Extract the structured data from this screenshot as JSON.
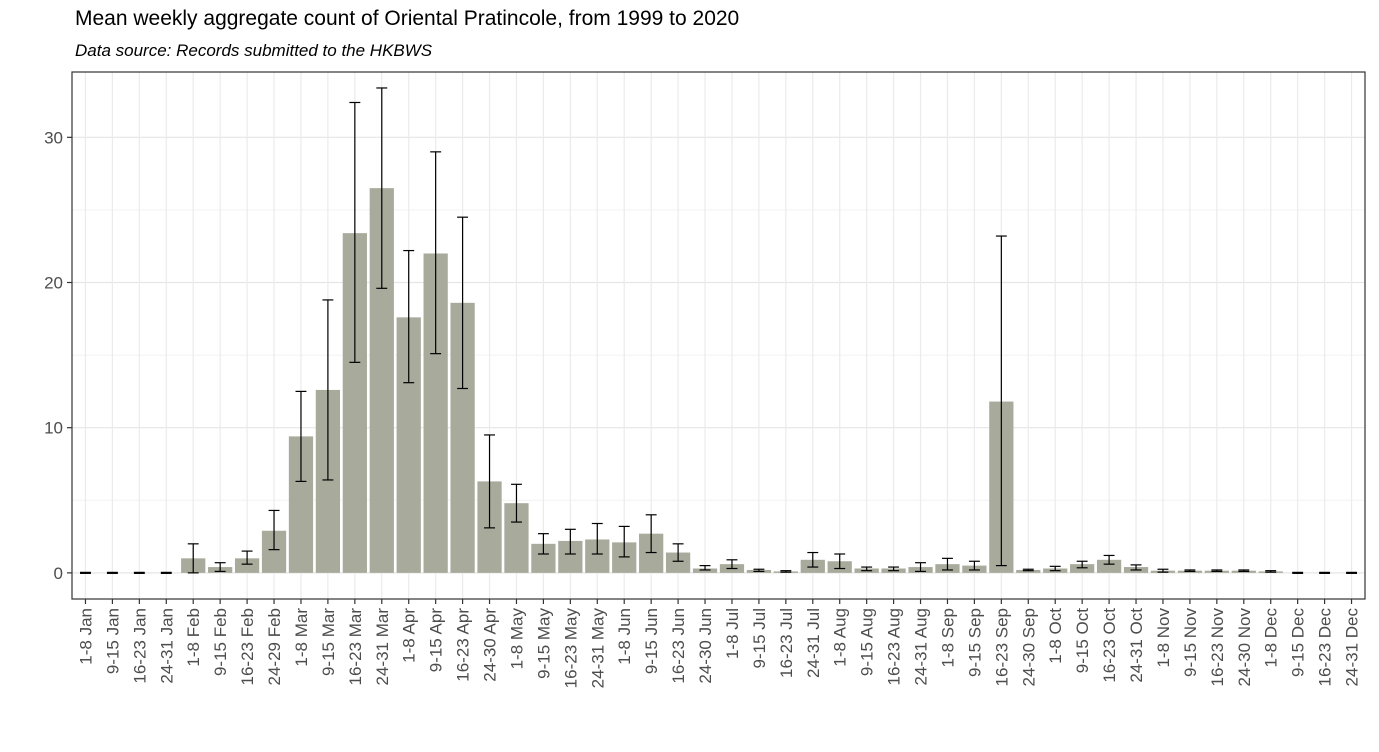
{
  "chart_data": {
    "type": "bar",
    "title": "Mean weekly aggregate count of Oriental Pratincole, from 1999 to 2020",
    "subtitle": "Data source: Records submitted to the HKBWS",
    "xlabel": "",
    "ylabel": "",
    "ylim": [
      -1.8,
      34.5
    ],
    "yticks": [
      0,
      10,
      20,
      30
    ],
    "grid": true,
    "bar_color": "#a8aa9c",
    "error_bar_color": "#000000",
    "categories": [
      "1-8 Jan",
      "9-15 Jan",
      "16-23 Jan",
      "24-31 Jan",
      "1-8 Feb",
      "9-15 Feb",
      "16-23 Feb",
      "24-29 Feb",
      "1-8 Mar",
      "9-15 Mar",
      "16-23 Mar",
      "24-31 Mar",
      "1-8 Apr",
      "9-15 Apr",
      "16-23 Apr",
      "24-30 Apr",
      "1-8 May",
      "9-15 May",
      "16-23 May",
      "24-31 May",
      "1-8 Jun",
      "9-15 Jun",
      "16-23 Jun",
      "24-30 Jun",
      "1-8 Jul",
      "9-15 Jul",
      "16-23 Jul",
      "24-31 Jul",
      "1-8 Aug",
      "9-15 Aug",
      "16-23 Aug",
      "24-31 Aug",
      "1-8 Sep",
      "9-15 Sep",
      "16-23 Sep",
      "24-30 Sep",
      "1-8 Oct",
      "9-15 Oct",
      "16-23 Oct",
      "24-31 Oct",
      "1-8 Nov",
      "9-15 Nov",
      "16-23 Nov",
      "24-30 Nov",
      "1-8 Dec",
      "9-15 Dec",
      "16-23 Dec",
      "24-31 Dec"
    ],
    "values": [
      0,
      0,
      0,
      0,
      1.0,
      0.4,
      1.0,
      2.9,
      9.4,
      12.6,
      23.4,
      26.5,
      17.6,
      22.0,
      18.6,
      6.3,
      4.8,
      2.0,
      2.2,
      2.3,
      2.1,
      2.7,
      1.4,
      0.3,
      0.6,
      0.2,
      0.1,
      0.9,
      0.8,
      0.3,
      0.3,
      0.4,
      0.6,
      0.5,
      11.8,
      0.2,
      0.3,
      0.6,
      0.9,
      0.4,
      0.15,
      0.15,
      0.15,
      0.15,
      0.1,
      0,
      0,
      0
    ],
    "error_low": [
      0,
      0,
      0,
      0,
      0.0,
      0.1,
      0.6,
      1.6,
      6.3,
      6.4,
      14.5,
      19.6,
      13.1,
      15.1,
      12.7,
      3.1,
      3.5,
      1.3,
      1.3,
      1.3,
      1.1,
      1.4,
      0.8,
      0.2,
      0.3,
      0.1,
      0.05,
      0.4,
      0.3,
      0.15,
      0.15,
      0.1,
      0.2,
      0.2,
      0.5,
      0.15,
      0.15,
      0.35,
      0.6,
      0.2,
      0.05,
      0.1,
      0.1,
      0.1,
      0.05,
      0,
      0,
      0
    ],
    "error_high": [
      0,
      0,
      0,
      0,
      2.0,
      0.7,
      1.5,
      4.3,
      12.5,
      18.8,
      32.4,
      33.4,
      22.2,
      29.0,
      24.5,
      9.5,
      6.1,
      2.7,
      3.0,
      3.4,
      3.2,
      4.0,
      2.0,
      0.5,
      0.9,
      0.25,
      0.15,
      1.4,
      1.3,
      0.4,
      0.4,
      0.7,
      1.0,
      0.8,
      23.2,
      0.25,
      0.45,
      0.8,
      1.2,
      0.55,
      0.25,
      0.2,
      0.2,
      0.2,
      0.15,
      0,
      0,
      0
    ]
  }
}
